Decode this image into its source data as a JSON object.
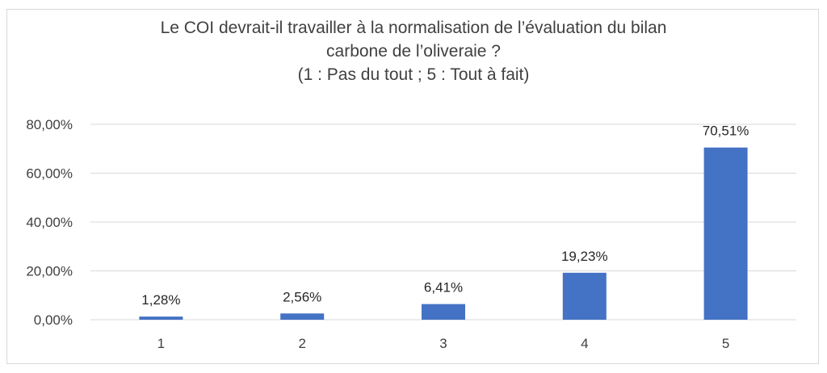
{
  "chart_data": {
    "type": "bar",
    "title_lines": [
      "Le COI devrait-il travailler à la normalisation de l’évaluation du bilan",
      "carbone de l’oliveraie ?",
      "(1 : Pas du tout ; 5 : Tout à fait)"
    ],
    "categories": [
      "1",
      "2",
      "3",
      "4",
      "5"
    ],
    "values": [
      1.28,
      2.56,
      6.41,
      19.23,
      70.51
    ],
    "data_labels": [
      "1,28%",
      "2,56%",
      "6,41%",
      "19,23%",
      "70,51%"
    ],
    "y_ticks": [
      0,
      20,
      40,
      60,
      80
    ],
    "y_tick_labels": [
      "0,00%",
      "20,00%",
      "40,00%",
      "60,00%",
      "80,00%"
    ],
    "ylim": [
      0,
      80
    ],
    "grid": true,
    "legend": "none",
    "bar_color": "#4472C4",
    "grid_color": "#d9d9d9"
  }
}
